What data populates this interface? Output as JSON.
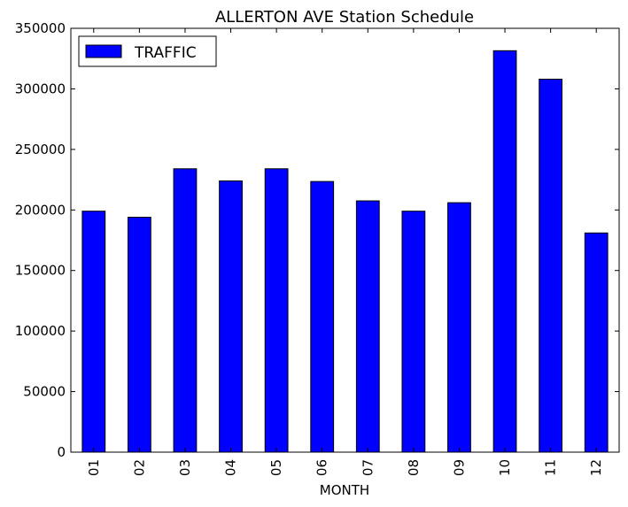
{
  "chart_data": {
    "type": "bar",
    "title": "ALLERTON AVE Station Schedule",
    "xlabel": "MONTH",
    "ylabel": "",
    "categories": [
      "01",
      "02",
      "03",
      "04",
      "05",
      "06",
      "07",
      "08",
      "09",
      "10",
      "11",
      "12"
    ],
    "series": [
      {
        "name": "TRAFFIC",
        "color": "#0000ff",
        "values": [
          199000,
          194000,
          234000,
          224000,
          234000,
          223500,
          207500,
          199000,
          206000,
          331500,
          308000,
          181000
        ]
      }
    ],
    "ylim": [
      0,
      350000
    ],
    "yticks": [
      0,
      50000,
      100000,
      150000,
      200000,
      250000,
      300000,
      350000
    ],
    "ytick_labels": [
      "0",
      "50000",
      "100000",
      "150000",
      "200000",
      "250000",
      "300000",
      "350000"
    ],
    "grid": false,
    "legend_position": "top-left"
  }
}
